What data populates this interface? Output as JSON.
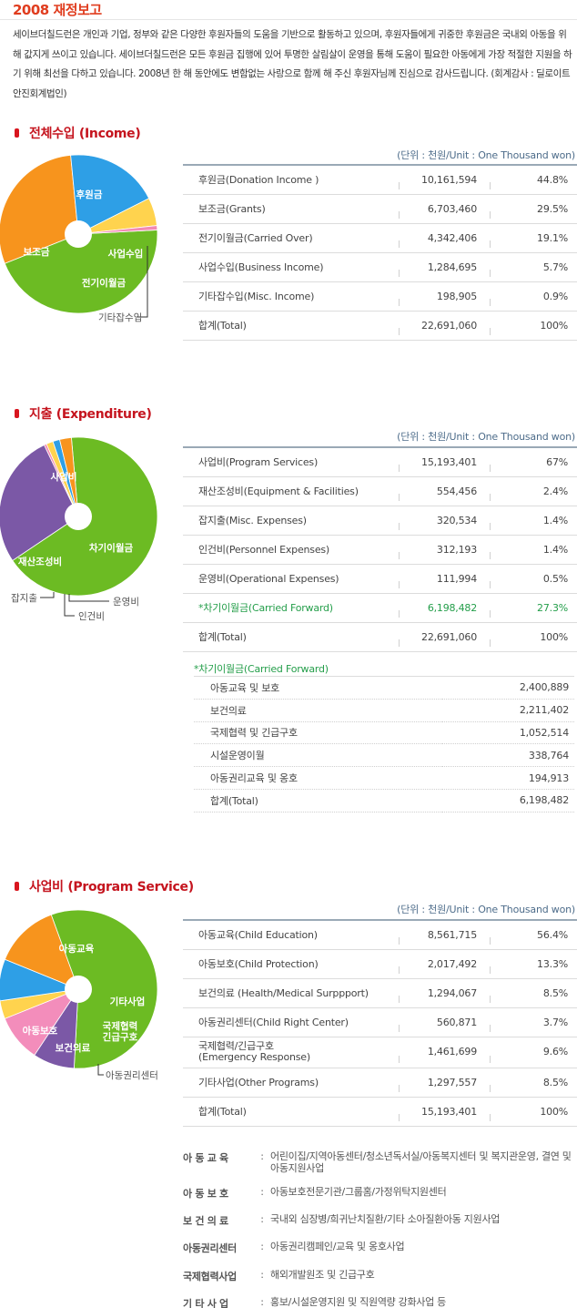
{
  "header": {
    "title": "2008 재정보고",
    "intro": "세이브더칠드런은 개인과 기업, 정부와 같은 다양한 후원자들의 도움을 기반으로 활동하고 있으며, 후원자들에게 귀중한 후원금은 국내외 아동을 위해 값지게 쓰이고 있습니다. 세이브더칠드런은 모든 후원금 집행에 있어 투명한 살림살이 운영을 통해 도움이 필요한 아동에게 가장 적절한 지원을 하기 위해 최선을 다하고 있습니다. 2008년 한 해 동안에도 변함없는 사랑으로 함께 해 주신 후원자님께 진심으로 감사드립니다. (회계감사 : 딜로이트안진회계법인)"
  },
  "unit_label": "(단위 : 천원/Unit : One Thousand won)",
  "income": {
    "heading": "전체수입 (Income)",
    "rows": [
      {
        "name": "후원금(Donation Income )",
        "amount": "10,161,594",
        "percent": "44.8%"
      },
      {
        "name": "보조금(Grants)",
        "amount": "6,703,460",
        "percent": "29.5%"
      },
      {
        "name": "전기이월금(Carried Over)",
        "amount": "4,342,406",
        "percent": "19.1%"
      },
      {
        "name": "사업수입(Business Income)",
        "amount": "1,284,695",
        "percent": "5.7%"
      },
      {
        "name": "기타잡수입(Misc. Income)",
        "amount": "198,905",
        "percent": "0.9%"
      },
      {
        "name": "합계(Total)",
        "amount": "22,691,060",
        "percent": "100%"
      }
    ],
    "pie_labels": {
      "donation": "후원금",
      "grants": "보조금",
      "business": "사업수입",
      "carried": "전기이월금",
      "misc": "기타잡수입"
    }
  },
  "expenditure": {
    "heading": "지출 (Expenditure)",
    "rows": [
      {
        "name": "사업비(Program Services)",
        "amount": "15,193,401",
        "percent": "67%"
      },
      {
        "name": "재산조성비(Equipment & Facilities)",
        "amount": "554,456",
        "percent": "2.4%"
      },
      {
        "name": "잡지출(Misc. Expenses)",
        "amount": "320,534",
        "percent": "1.4%"
      },
      {
        "name": "인건비(Personnel Expenses)",
        "amount": "312,193",
        "percent": "1.4%"
      },
      {
        "name": "운영비(Operational Expenses)",
        "amount": "111,994",
        "percent": "0.5%"
      },
      {
        "name": "*차기이월금(Carried Forward)",
        "amount": "6,198,482",
        "percent": "27.3%"
      },
      {
        "name": "합계(Total)",
        "amount": "22,691,060",
        "percent": "100%"
      }
    ],
    "pie_labels": {
      "program": "사업비",
      "carried": "차기이월금",
      "equipment": "재산조성비",
      "misc": "잡지출",
      "personnel": "인건비",
      "operational": "운영비"
    },
    "carried_forward": {
      "title": "*차기이월금(Carried Forward)",
      "rows": [
        {
          "name": "아동교육 및 보호",
          "amount": "2,400,889"
        },
        {
          "name": "보건의료",
          "amount": "2,211,402"
        },
        {
          "name": "국제협력 및 긴급구호",
          "amount": "1,052,514"
        },
        {
          "name": "시설운영이월",
          "amount": "338,764"
        },
        {
          "name": "아동권리교육 및 옹호",
          "amount": "194,913"
        },
        {
          "name": "합계(Total)",
          "amount": "6,198,482"
        }
      ]
    }
  },
  "program": {
    "heading": "사업비 (Program Service)",
    "rows": [
      {
        "name": "아동교육(Child Education)",
        "amount": "8,561,715",
        "percent": "56.4%"
      },
      {
        "name": "아동보호(Child Protection)",
        "amount": "2,017,492",
        "percent": "13.3%"
      },
      {
        "name": "보건의료 (Health/Medical Surppport)",
        "amount": "1,294,067",
        "percent": "8.5%"
      },
      {
        "name": "아동권리센터(Child Right Center)",
        "amount": "560,871",
        "percent": "3.7%"
      },
      {
        "name": "국제협력/긴급구호",
        "name2": "(Emergency Response)",
        "amount": "1,461,699",
        "percent": "9.6%"
      },
      {
        "name": "기타사업(Other Programs)",
        "amount": "1,297,557",
        "percent": "8.5%"
      },
      {
        "name": "합계(Total)",
        "amount": "15,193,401",
        "percent": "100%"
      }
    ],
    "pie_labels": {
      "education": "아동교육",
      "protection": "아동보호",
      "health": "보건의료",
      "emergency1": "국제협력",
      "emergency2": "긴급구호",
      "other": "기타사업",
      "rights": "아동권리센터"
    },
    "definitions": [
      {
        "key": "아 동 교 육",
        "value": "어린이집/지역아동센터/청소년독서실/아동복지센터 및 복지관운영, 결연 및 아동지원사업"
      },
      {
        "key": "아 동 보 호",
        "value": "아동보호전문기관/그룹홈/가정위탁지원센터"
      },
      {
        "key": "보 건 의 료",
        "value": "국내외 심장병/희귀난치질환/기타 소아질환아동 지원사업"
      },
      {
        "key": "아동권리센터",
        "value": "아동권리캠페인/교육 및 옹호사업"
      },
      {
        "key": "국제협력사업",
        "value": "해외개발원조 및 긴급구호"
      },
      {
        "key": "기 타 사 업",
        "value": "홍보/시설운영지원 및 직원역량 강화사업 등"
      }
    ],
    "colon": ":"
  },
  "chart_data": [
    {
      "type": "pie",
      "title": "전체수입 (Income)",
      "categories": [
        "후원금",
        "보조금",
        "전기이월금",
        "사업수입",
        "기타잡수입"
      ],
      "values": [
        44.8,
        29.5,
        19.1,
        5.7,
        0.9
      ],
      "colors": [
        "#6cbb23",
        "#f7941d",
        "#2e9fe6",
        "#ffd34e",
        "#f28ab2"
      ]
    },
    {
      "type": "pie",
      "title": "지출 (Expenditure)",
      "categories": [
        "사업비",
        "차기이월금",
        "운영비",
        "인건비",
        "잡지출",
        "재산조성비"
      ],
      "values": [
        67,
        27.3,
        0.5,
        1.4,
        1.4,
        2.4
      ],
      "colors": [
        "#6cbb23",
        "#7b58a6",
        "#f28ab2",
        "#ffd34e",
        "#2e9fe6",
        "#f7941d"
      ]
    },
    {
      "type": "pie",
      "title": "사업비 (Program Service)",
      "categories": [
        "아동교육",
        "기타사업",
        "국제협력/긴급구호",
        "아동권리센터",
        "보건의료",
        "아동보호"
      ],
      "values": [
        56.4,
        8.5,
        9.6,
        3.7,
        8.5,
        13.3
      ],
      "colors": [
        "#6cbb23",
        "#7b58a6",
        "#f38dbb",
        "#ffd34e",
        "#2e9fe6",
        "#f7941d"
      ]
    }
  ]
}
